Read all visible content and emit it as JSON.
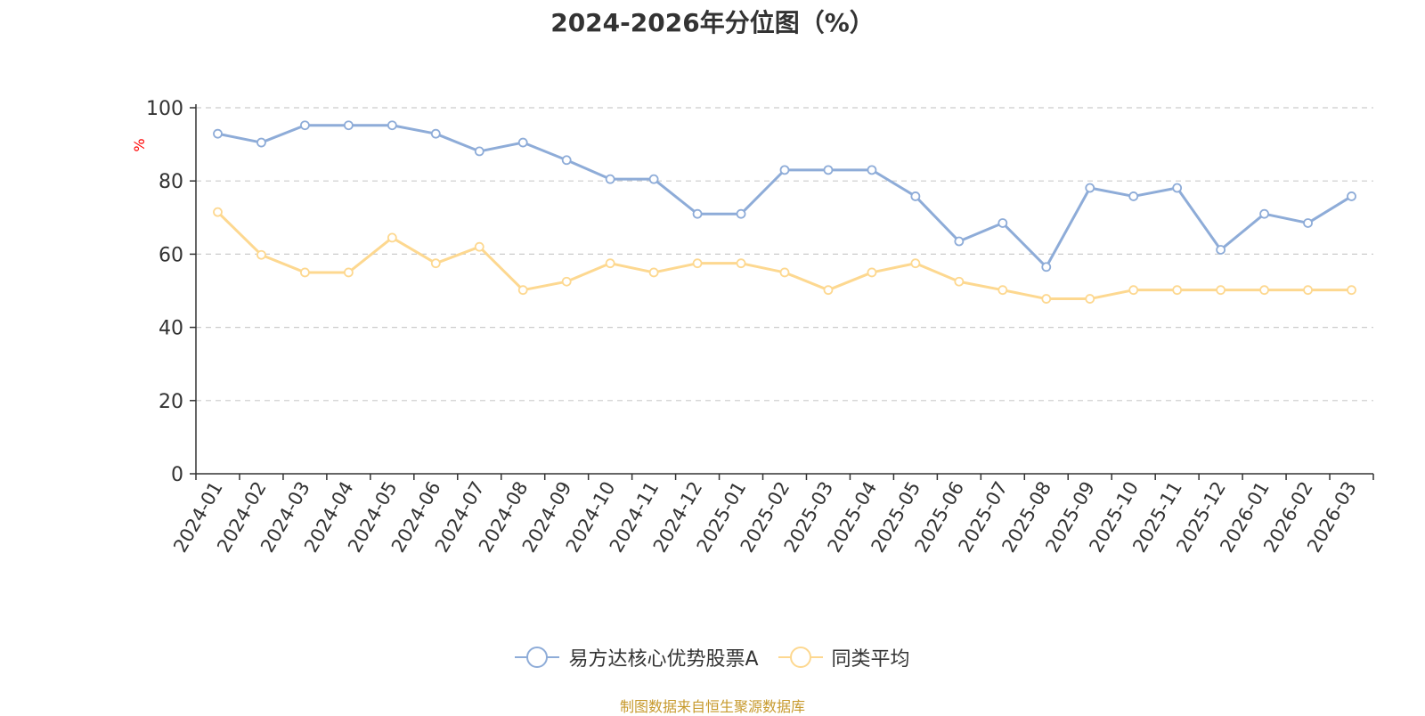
{
  "colors": {
    "series_a": "#8eacd8",
    "series_b": "#fdd890",
    "axis": "#333333",
    "grid": "#cccccc",
    "unit": "#ff0000",
    "source": "#c79a2e"
  },
  "chart_data": {
    "type": "line",
    "title": "2024-2026年分位图（%）",
    "ylabel": "%",
    "xlabel": "",
    "ylim": [
      0,
      100
    ],
    "yticks": [
      "0",
      "20",
      "40",
      "60",
      "80",
      "100"
    ],
    "grid": true,
    "legend_position": "bottom",
    "categories": [
      "2024-01",
      "2024-02",
      "2024-03",
      "2024-04",
      "2024-05",
      "2024-06",
      "2024-07",
      "2024-08",
      "2024-09",
      "2024-10",
      "2024-11",
      "2024-12",
      "2025-01",
      "2025-02",
      "2025-03",
      "2025-04",
      "2025-05",
      "2025-06",
      "2025-07",
      "2025-08",
      "2025-09",
      "2025-10",
      "2025-11",
      "2025-12",
      "2026-01",
      "2026-02",
      "2026-03"
    ],
    "series": [
      {
        "name": "易方达核心优势股票A",
        "values": [
          92.9,
          90.5,
          95.2,
          95.2,
          95.2,
          92.9,
          88.1,
          90.5,
          85.7,
          80.5,
          80.5,
          71.0,
          71.0,
          83.0,
          83.0,
          83.0,
          75.8,
          63.5,
          68.5,
          56.5,
          78.1,
          75.8,
          78.1,
          61.2,
          71.0,
          68.5,
          75.8
        ]
      },
      {
        "name": "同类平均",
        "values": [
          71.5,
          59.8,
          55.0,
          55.0,
          64.5,
          57.5,
          62.0,
          50.2,
          52.5,
          57.5,
          55.0,
          57.5,
          57.5,
          55.0,
          50.2,
          55.0,
          57.5,
          52.5,
          50.2,
          47.8,
          47.8,
          50.2,
          50.2,
          50.2,
          50.2,
          50.2,
          50.2
        ]
      }
    ]
  },
  "footer": {
    "source": "制图数据来自恒生聚源数据库"
  }
}
